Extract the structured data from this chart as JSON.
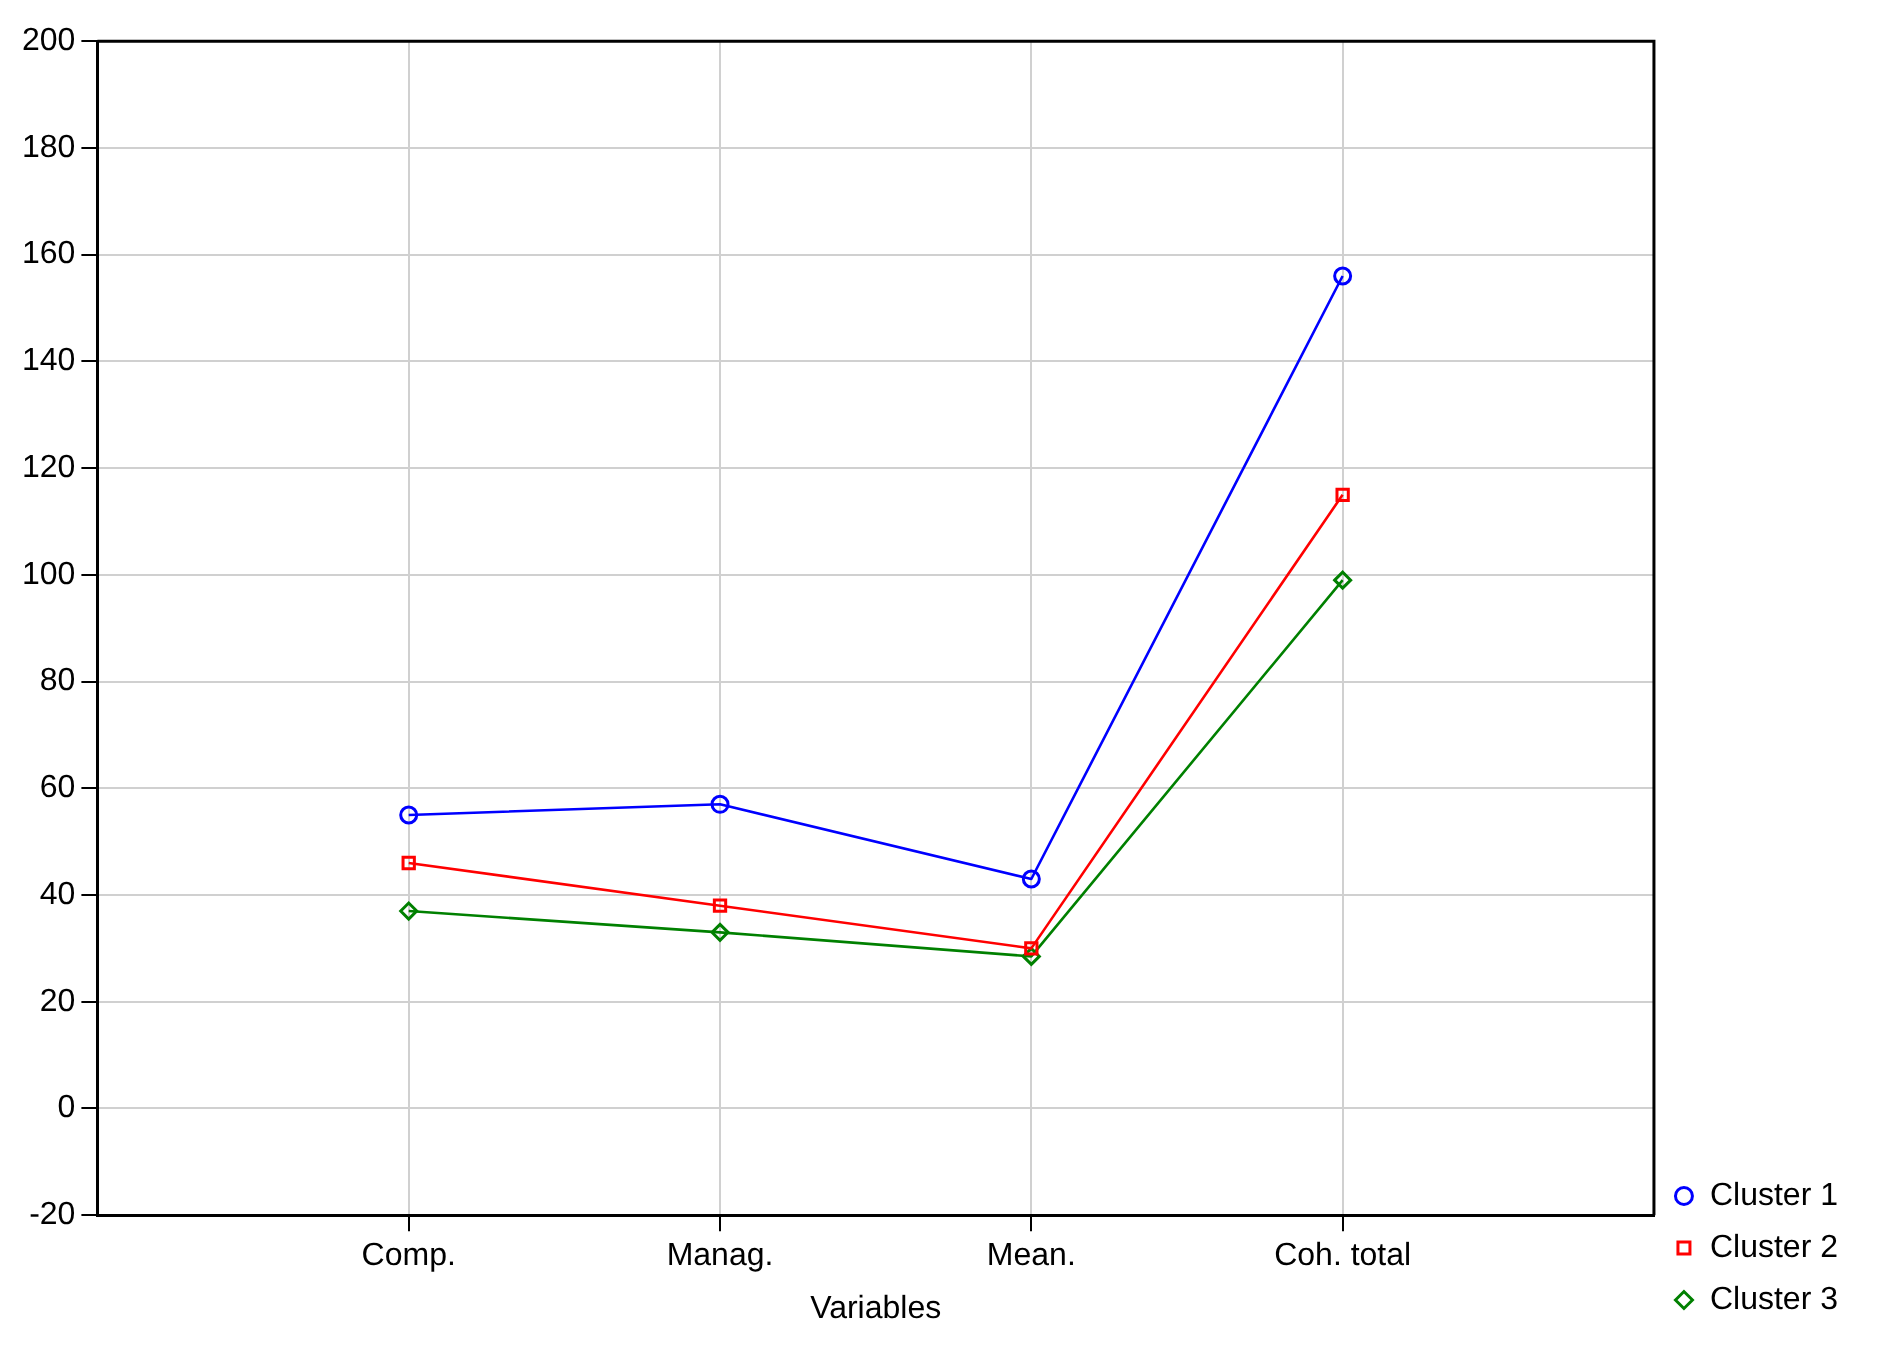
{
  "chart_data": {
    "type": "line",
    "xlabel": "Variables",
    "categories": [
      "Comp.",
      "Manag.",
      "Mean.",
      "Coh. total"
    ],
    "series": [
      {
        "name": "Cluster 1",
        "color": "#0000ff",
        "marker": "circle",
        "values": [
          55,
          57,
          43,
          156
        ]
      },
      {
        "name": "Cluster 2",
        "color": "#ff0000",
        "marker": "square",
        "values": [
          46,
          38,
          30,
          115
        ]
      },
      {
        "name": "Cluster 3",
        "color": "#008000",
        "marker": "diamond",
        "values": [
          37,
          33,
          28.5,
          99
        ]
      }
    ],
    "ylim": [
      -20,
      200
    ],
    "yticks": [
      -20,
      0,
      20,
      40,
      60,
      80,
      100,
      120,
      140,
      160,
      180,
      200
    ],
    "grid": true,
    "legend": "bottom right",
    "line_style": "solid"
  }
}
